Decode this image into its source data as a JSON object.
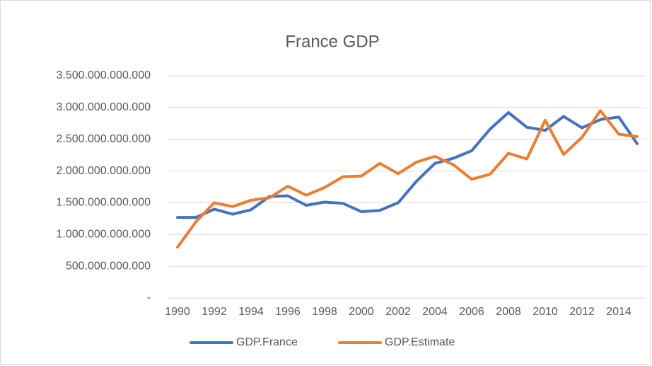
{
  "chart_data": {
    "type": "line",
    "title": "France GDP",
    "categories": [
      "1990",
      null,
      "1992",
      null,
      "1994",
      null,
      "1996",
      null,
      "1998",
      null,
      "2000",
      null,
      "2002",
      null,
      "2004",
      null,
      "2006",
      null,
      "2008",
      null,
      "2010",
      null,
      "2012",
      null,
      "2014",
      null
    ],
    "series": [
      {
        "name": "GDP.France",
        "color": "#4472c4",
        "values": [
          1270000000000,
          1270000000000,
          1400000000000,
          1320000000000,
          1390000000000,
          1600000000000,
          1610000000000,
          1460000000000,
          1510000000000,
          1490000000000,
          1360000000000,
          1380000000000,
          1500000000000,
          1840000000000,
          2120000000000,
          2200000000000,
          2320000000000,
          2660000000000,
          2920000000000,
          2690000000000,
          2640000000000,
          2860000000000,
          2680000000000,
          2810000000000,
          2850000000000,
          2430000000000
        ]
      },
      {
        "name": "GDP.Estimate",
        "color": "#ed7d31",
        "values": [
          800000000000,
          1200000000000,
          1500000000000,
          1440000000000,
          1540000000000,
          1580000000000,
          1760000000000,
          1620000000000,
          1740000000000,
          1910000000000,
          1920000000000,
          2120000000000,
          1960000000000,
          2140000000000,
          2230000000000,
          2100000000000,
          1870000000000,
          1950000000000,
          2280000000000,
          2190000000000,
          2800000000000,
          2260000000000,
          2530000000000,
          2950000000000,
          2580000000000,
          2540000000000
        ]
      }
    ],
    "ylim": [
      0,
      3500000000000
    ],
    "yticks": [
      {
        "value": 0,
        "label": "-"
      },
      {
        "value": 500000000000,
        "label": "500.000.000.000"
      },
      {
        "value": 1000000000000,
        "label": "1.000.000.000.000"
      },
      {
        "value": 1500000000000,
        "label": "1.500.000.000.000"
      },
      {
        "value": 2000000000000,
        "label": "2.000.000.000.000"
      },
      {
        "value": 2500000000000,
        "label": "2.500.000.000.000"
      },
      {
        "value": 3000000000000,
        "label": "3.000.000.000.000"
      },
      {
        "value": 3500000000000,
        "label": "3.500.000.000.000"
      }
    ],
    "grid": true,
    "legend": "bottom"
  }
}
